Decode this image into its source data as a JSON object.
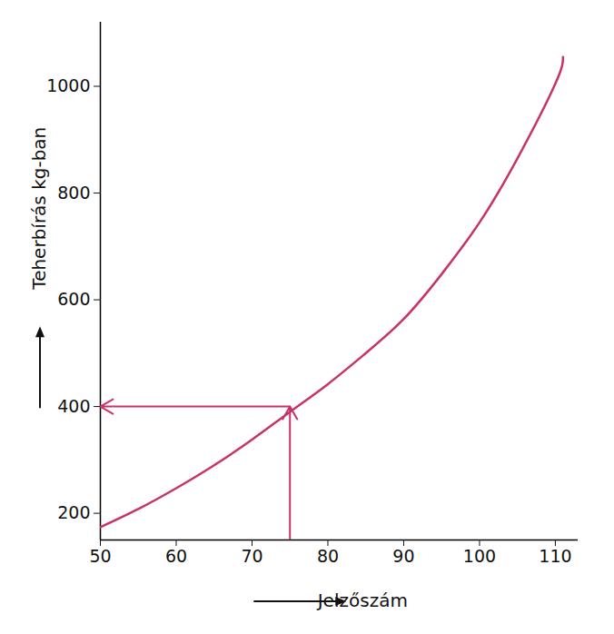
{
  "chart_data": {
    "type": "line",
    "xlabel": "Jelzőszám",
    "ylabel": "Teherbírás kg-ban",
    "x": [
      50,
      55,
      60,
      65,
      70,
      75,
      80,
      85,
      90,
      95,
      100,
      105,
      110,
      111
    ],
    "values": [
      174,
      208,
      247,
      290,
      338,
      390,
      442,
      500,
      564,
      648,
      745,
      865,
      1005,
      1055
    ],
    "color": "#c8326a",
    "xlim": [
      50,
      113
    ],
    "ylim": [
      150,
      1120
    ],
    "xticks": [
      50,
      60,
      70,
      80,
      90,
      100,
      110
    ],
    "yticks": [
      200,
      400,
      600,
      800,
      1000
    ],
    "grid": false,
    "reading": {
      "x": 75,
      "y": 400
    }
  }
}
